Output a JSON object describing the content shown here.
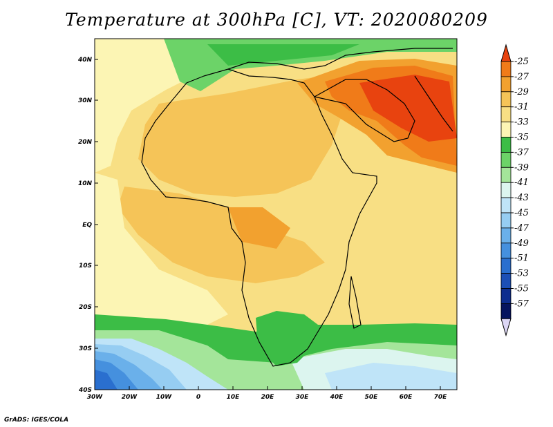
{
  "title": "Temperature at 300hPa [C], VT: 2020080209",
  "credit": "GrADS: IGES/COLA",
  "map": {
    "lon_range": [
      -30,
      76
    ],
    "lat_range": [
      -40,
      45
    ],
    "x_ticks": [
      "30W",
      "20W",
      "10W",
      "0",
      "10E",
      "20E",
      "30E",
      "40E",
      "50E",
      "60E",
      "70E"
    ],
    "y_ticks": [
      "40S",
      "30S",
      "20S",
      "10S",
      "EQ",
      "10N",
      "20N",
      "30N",
      "40N"
    ],
    "ocean_land_note_icon": "coastline-overlay"
  },
  "colorbar": {
    "levels": [
      "-25",
      "-27",
      "-29",
      "-31",
      "-33",
      "-35",
      "-37",
      "-39",
      "-41",
      "-43",
      "-45",
      "-47",
      "-49",
      "-51",
      "-53",
      "-55",
      "-57"
    ],
    "colors": [
      "#e8430f",
      "#f07b19",
      "#f2a12f",
      "#f5c458",
      "#f8df84",
      "#fcf5b4",
      "#3cbd46",
      "#6cd368",
      "#a4e59a",
      "#dcf5ef",
      "#bfe4f8",
      "#96cdf2",
      "#6ab0ea",
      "#4590de",
      "#2a6fcf",
      "#1c4fb6",
      "#0d2d8f",
      "#06145f"
    ],
    "min_arrow_color": "#dcd6f5"
  }
}
